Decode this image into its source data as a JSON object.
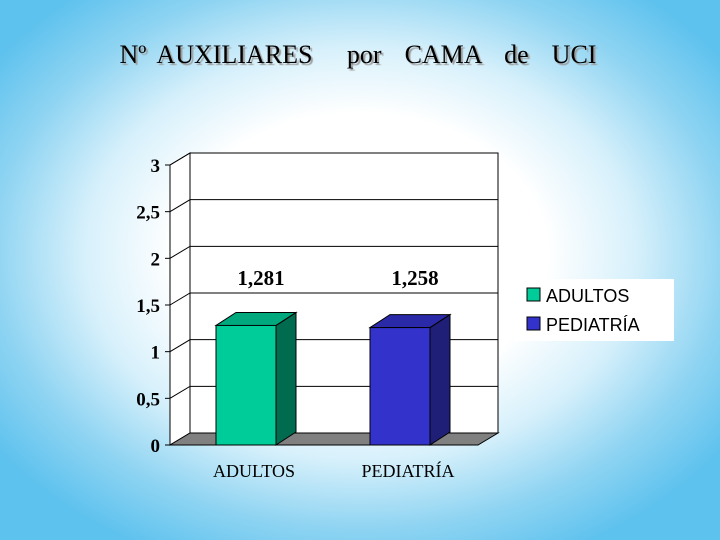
{
  "slide": {
    "title": "Nº AUXILIARES   por  CAMA  de  UCI"
  },
  "chart_data": {
    "type": "bar",
    "title": "Nº AUXILIARES   por  CAMA  de  UCI",
    "categories": [
      "ADULTOS",
      "PEDIATRÍA"
    ],
    "values": [
      1.281,
      1.258
    ],
    "data_labels": [
      "1,281",
      "1,258"
    ],
    "colors": [
      "#00cc99",
      "#3333cc"
    ],
    "side_colors": [
      "#006b4f",
      "#1f1f78"
    ],
    "top_colors": [
      "#00a87d",
      "#2a2aa8"
    ],
    "ylim": [
      0,
      3
    ],
    "yticks": [
      0,
      0.5,
      1,
      1.5,
      2,
      2.5,
      3
    ],
    "ytick_labels": [
      "0",
      "0,5",
      "1",
      "1,5",
      "2",
      "2,5",
      "3"
    ],
    "grid": true,
    "three_d": true,
    "legend": {
      "position": "right",
      "entries": [
        {
          "label": "ADULTOS",
          "color": "#00cc99"
        },
        {
          "label": "PEDIATRÍA",
          "color": "#3333cc"
        }
      ]
    }
  }
}
